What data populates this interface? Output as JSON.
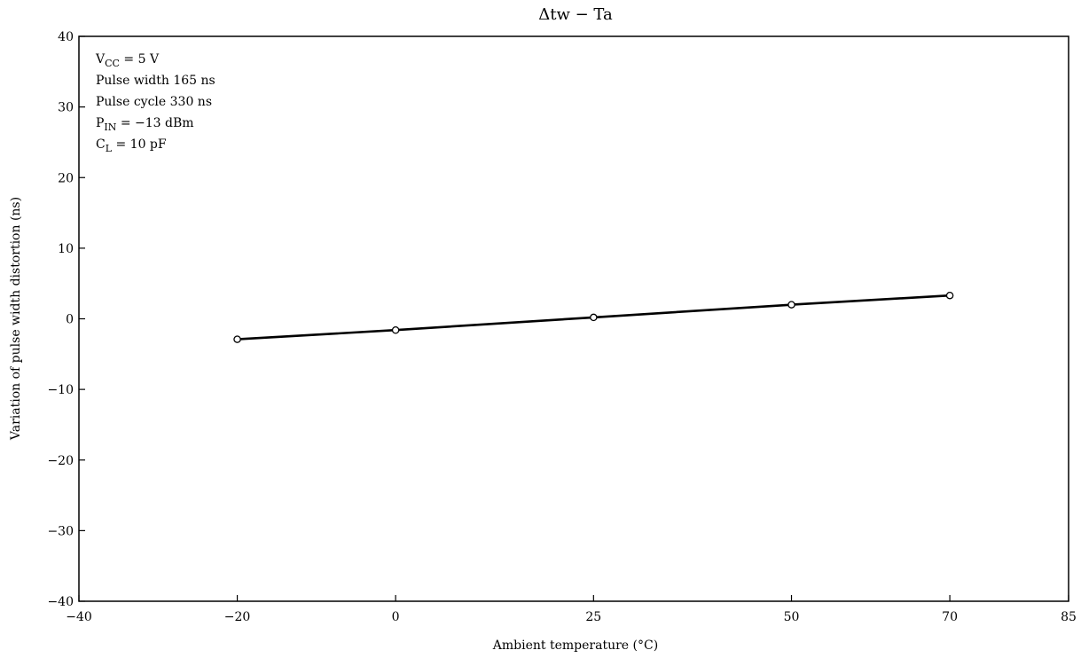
{
  "chart_data": {
    "type": "line",
    "title": "Δtw − Ta",
    "xlabel": "Ambient temperature   (°C)",
    "ylabel": "Variation of pulse width distortion   (ns)",
    "xlim": [
      -40,
      85
    ],
    "ylim": [
      -40,
      40
    ],
    "x_ticks": [
      -40,
      -20,
      0,
      25,
      50,
      70,
      85
    ],
    "x_tick_labels": [
      "−40",
      "−20",
      "0",
      "25",
      "50",
      "70",
      "85"
    ],
    "y_ticks": [
      -40,
      -30,
      -20,
      -10,
      0,
      10,
      20,
      30,
      40
    ],
    "y_tick_labels": [
      "−40",
      "−30",
      "−20",
      "−10",
      "0",
      "10",
      "20",
      "30",
      "40"
    ],
    "grid": false,
    "series": [
      {
        "x": [
          -20,
          0,
          25,
          50,
          70
        ],
        "y": [
          -2.9,
          -1.6,
          0.2,
          2.0,
          3.3
        ],
        "marker": "open-circle",
        "color": "#000000"
      }
    ],
    "conditions": [
      {
        "main": "V",
        "sub": "CC",
        "rest": " = 5 V"
      },
      {
        "main": "Pulse width 165 ns",
        "sub": "",
        "rest": ""
      },
      {
        "main": "Pulse cycle 330 ns",
        "sub": "",
        "rest": ""
      },
      {
        "main": "P",
        "sub": "IN",
        "rest": " = −13 dBm"
      },
      {
        "main": "C",
        "sub": "L",
        "rest": " = 10 pF"
      }
    ]
  }
}
